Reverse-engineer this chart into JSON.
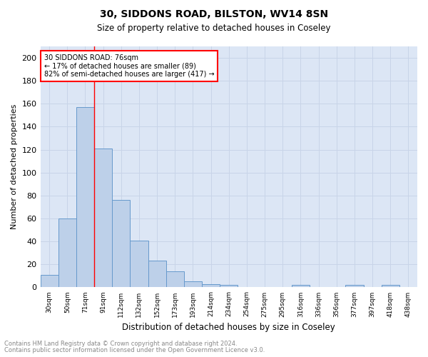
{
  "title1": "30, SIDDONS ROAD, BILSTON, WV14 8SN",
  "title2": "Size of property relative to detached houses in Coseley",
  "xlabel": "Distribution of detached houses by size in Coseley",
  "ylabel": "Number of detached properties",
  "categories": [
    "30sqm",
    "50sqm",
    "71sqm",
    "91sqm",
    "112sqm",
    "132sqm",
    "152sqm",
    "173sqm",
    "193sqm",
    "214sqm",
    "234sqm",
    "254sqm",
    "275sqm",
    "295sqm",
    "316sqm",
    "336sqm",
    "356sqm",
    "377sqm",
    "397sqm",
    "418sqm",
    "438sqm"
  ],
  "values": [
    11,
    60,
    157,
    121,
    76,
    41,
    23,
    14,
    5,
    3,
    2,
    0,
    0,
    0,
    2,
    0,
    0,
    2,
    0,
    2,
    0
  ],
  "bar_color": "#bdd0e9",
  "bar_edge_color": "#6699cc",
  "grid_color": "#c8d4e8",
  "background_color": "#dce6f5",
  "red_line_x": 2.5,
  "annotation_title": "30 SIDDONS ROAD: 76sqm",
  "annotation_line1": "← 17% of detached houses are smaller (89)",
  "annotation_line2": "82% of semi-detached houses are larger (417) →",
  "footnote1": "Contains HM Land Registry data © Crown copyright and database right 2024.",
  "footnote2": "Contains public sector information licensed under the Open Government Licence v3.0.",
  "ylim": [
    0,
    210
  ],
  "yticks": [
    0,
    20,
    40,
    60,
    80,
    100,
    120,
    140,
    160,
    180,
    200
  ]
}
